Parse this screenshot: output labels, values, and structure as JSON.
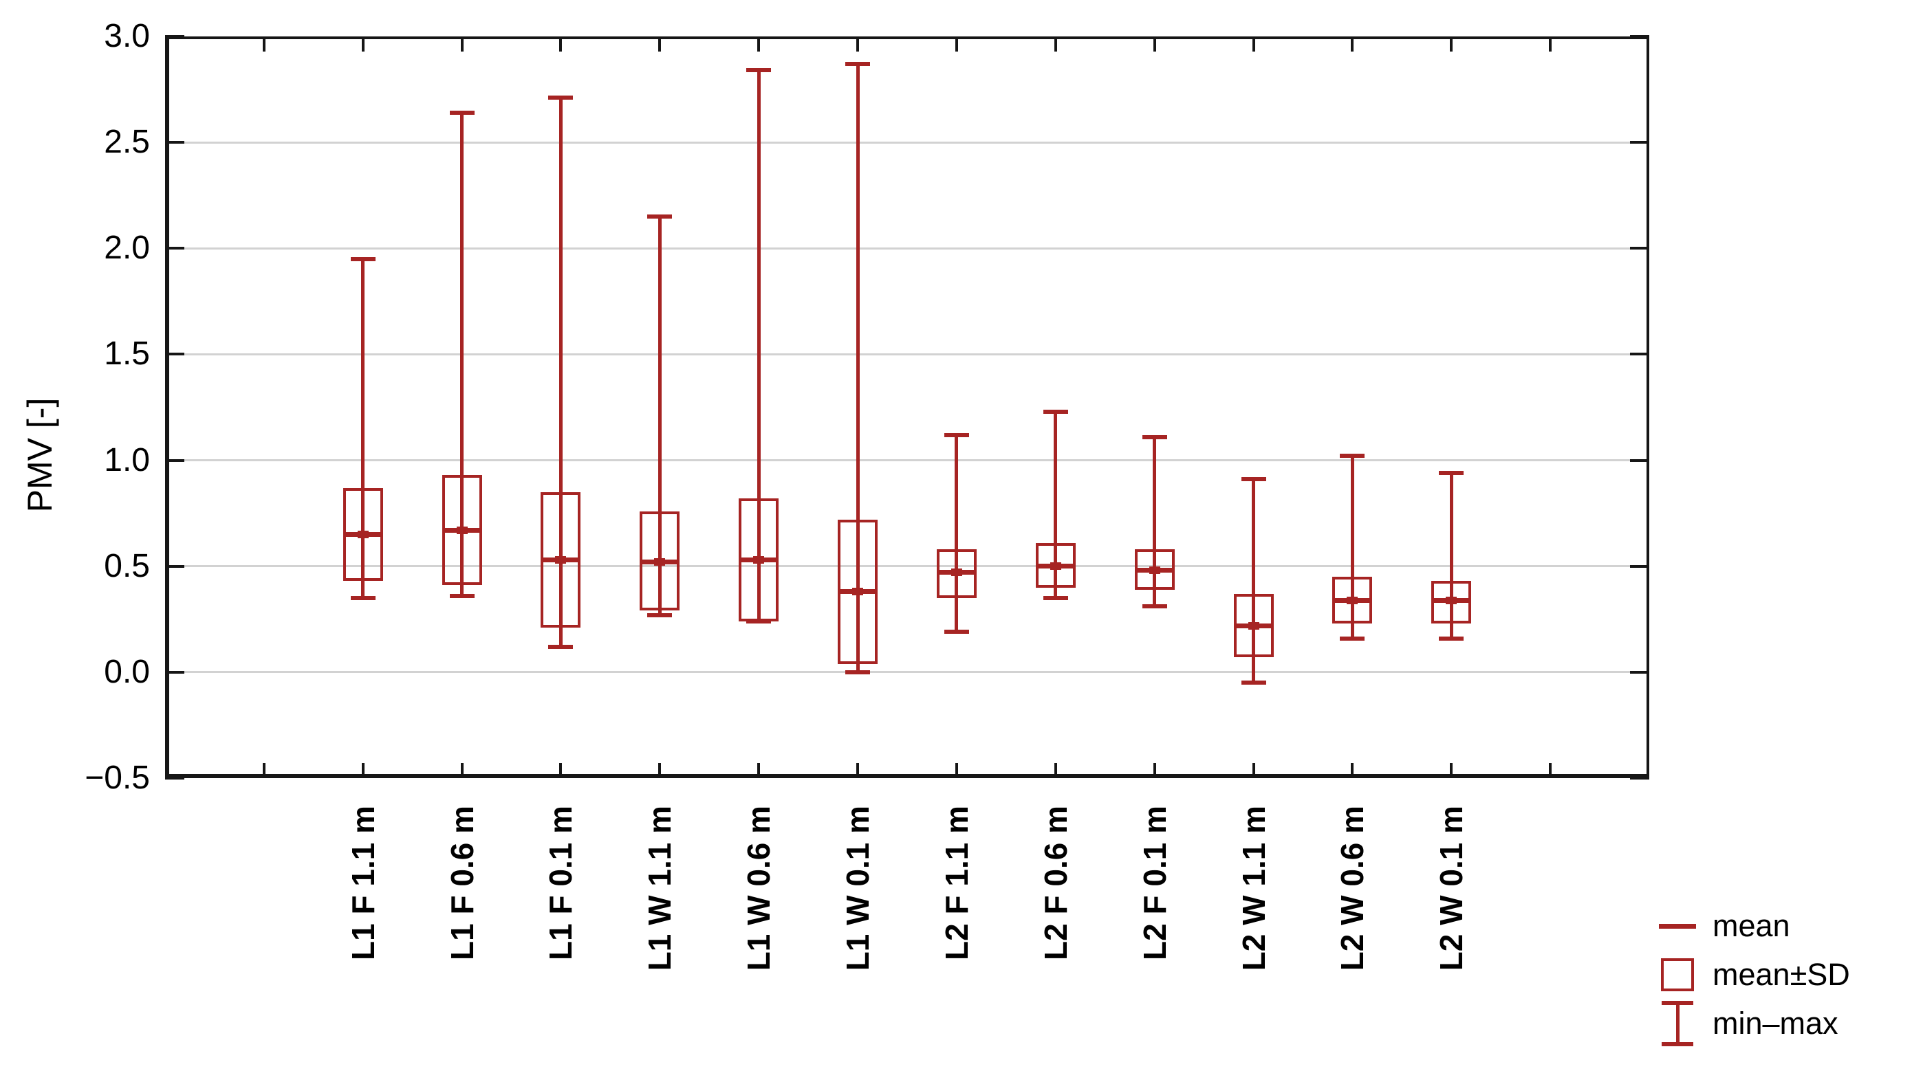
{
  "chart_data": {
    "type": "box",
    "title": "",
    "ylabel": "PMV [-]",
    "xlabel": "",
    "ylim": [
      -0.5,
      3.0
    ],
    "ytick_step": 0.5,
    "ytick_labels": [
      "3.0",
      "2.5",
      "2.0",
      "1.5",
      "1.0",
      "0.5",
      "0.0",
      "−0.5"
    ],
    "grid": true,
    "legend_position": "bottom-right",
    "categories": [
      "L1 F 1.1 m",
      "L1 F 0.6 m",
      "L1 F 0.1 m",
      "L1 W 1.1 m",
      "L1 W 0.6 m",
      "L1 W 0.1 m",
      "L2 F 1.1 m",
      "L2 F 0.6 m",
      "L2 F 0.1 m",
      "L2 W 1.1 m",
      "L2 W 0.6 m",
      "L2 W 0.1 m"
    ],
    "boxes": [
      {
        "label": "L1 F 1.1 m",
        "mean": 0.65,
        "sd_low": 0.43,
        "sd_high": 0.87,
        "min": 0.35,
        "max": 1.95
      },
      {
        "label": "L1 F 0.6 m",
        "mean": 0.67,
        "sd_low": 0.41,
        "sd_high": 0.93,
        "min": 0.36,
        "max": 2.64
      },
      {
        "label": "L1 F 0.1 m",
        "mean": 0.53,
        "sd_low": 0.21,
        "sd_high": 0.85,
        "min": 0.12,
        "max": 2.71
      },
      {
        "label": "L1 W 1.1 m",
        "mean": 0.52,
        "sd_low": 0.29,
        "sd_high": 0.76,
        "min": 0.27,
        "max": 2.15
      },
      {
        "label": "L1 W 0.6 m",
        "mean": 0.53,
        "sd_low": 0.24,
        "sd_high": 0.82,
        "min": 0.24,
        "max": 2.84
      },
      {
        "label": "L1 W 0.1 m",
        "mean": 0.38,
        "sd_low": 0.04,
        "sd_high": 0.72,
        "min": 0.0,
        "max": 2.87
      },
      {
        "label": "L2 F 1.1 m",
        "mean": 0.47,
        "sd_low": 0.35,
        "sd_high": 0.58,
        "min": 0.19,
        "max": 1.12
      },
      {
        "label": "L2 F 0.6 m",
        "mean": 0.5,
        "sd_low": 0.4,
        "sd_high": 0.61,
        "min": 0.35,
        "max": 1.23
      },
      {
        "label": "L2 F 0.1 m",
        "mean": 0.48,
        "sd_low": 0.39,
        "sd_high": 0.58,
        "min": 0.31,
        "max": 1.11
      },
      {
        "label": "L2 W 1.1 m",
        "mean": 0.22,
        "sd_low": 0.07,
        "sd_high": 0.37,
        "min": -0.05,
        "max": 0.91
      },
      {
        "label": "L2 W 0.6 m",
        "mean": 0.34,
        "sd_low": 0.23,
        "sd_high": 0.45,
        "min": 0.16,
        "max": 1.02
      },
      {
        "label": "L2 W 0.1 m",
        "mean": 0.34,
        "sd_low": 0.23,
        "sd_high": 0.43,
        "min": 0.16,
        "max": 0.94
      }
    ],
    "legend": [
      {
        "symbol": "dash",
        "label": "mean"
      },
      {
        "symbol": "square",
        "label": "mean±SD"
      },
      {
        "symbol": "ibeam",
        "label": "min–max"
      }
    ],
    "colors": {
      "series": "#a62423",
      "axis": "#161616",
      "grid": "#d2d2d2",
      "text": "#000000",
      "background": "#ffffff"
    }
  }
}
